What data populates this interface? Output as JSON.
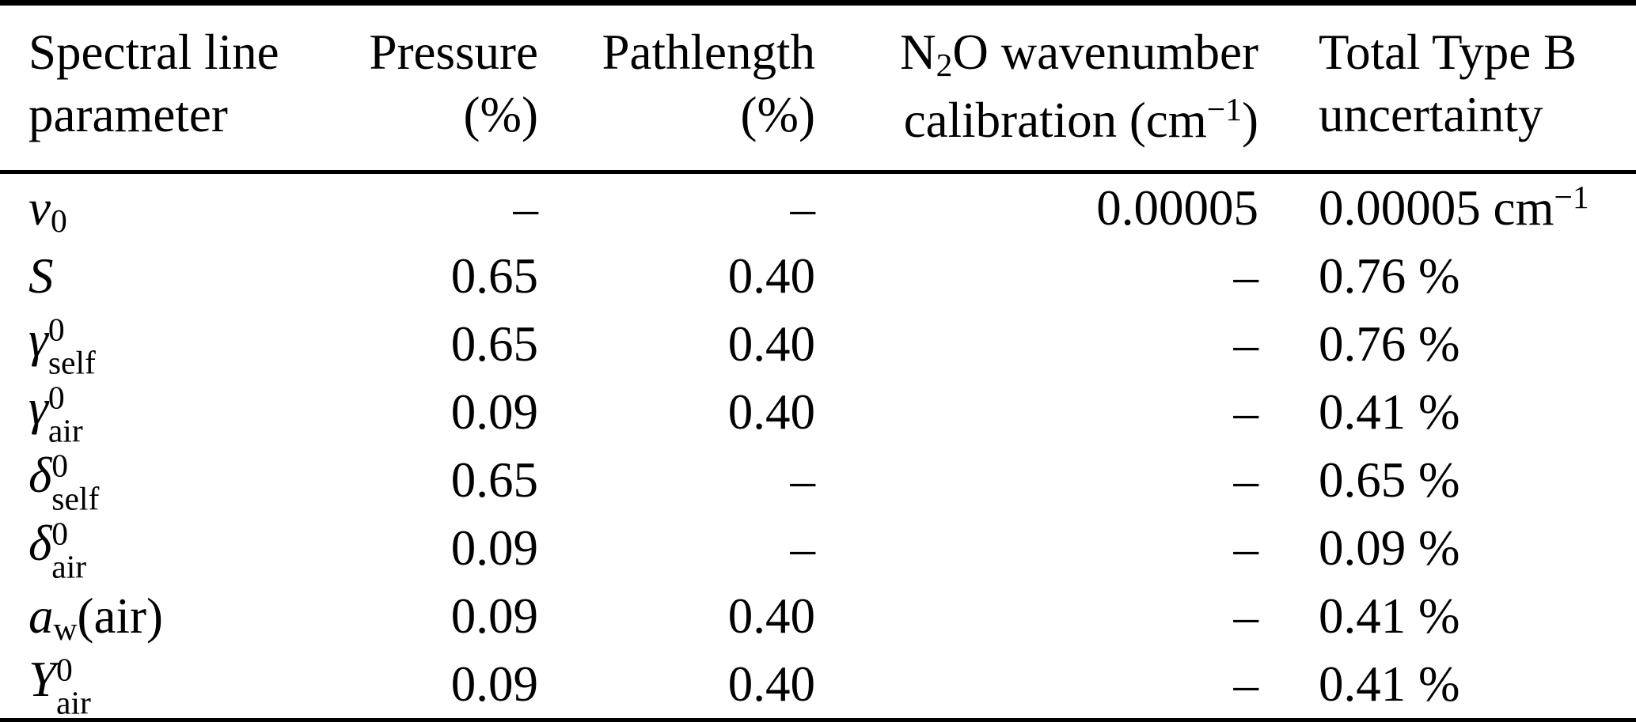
{
  "colors": {
    "text": "#000000",
    "background": "#ffffff",
    "rule": "#000000"
  },
  "table": {
    "header": [
      {
        "align": "left",
        "line1": [
          {
            "t": "Spectral line"
          }
        ],
        "line2": [
          {
            "t": "parameter"
          }
        ]
      },
      {
        "align": "right",
        "line1": [
          {
            "t": "Pressure"
          }
        ],
        "line2": [
          {
            "t": "(%)"
          }
        ]
      },
      {
        "align": "right",
        "line1": [
          {
            "t": "Pathlength"
          }
        ],
        "line2": [
          {
            "t": "(%)"
          }
        ]
      },
      {
        "align": "right",
        "line1": [
          {
            "t": "N"
          },
          {
            "t": "2",
            "pos": "sub"
          },
          {
            "t": "O wavenumber"
          }
        ],
        "line2": [
          {
            "t": "calibration (cm"
          },
          {
            "t": "−1",
            "pos": "sup"
          },
          {
            "t": ")"
          }
        ]
      },
      {
        "align": "left",
        "line1": [
          {
            "t": "Total Type B"
          }
        ],
        "line2": [
          {
            "t": "uncertainty"
          }
        ]
      }
    ],
    "rows": [
      {
        "param": {
          "base": "ν",
          "sup": "",
          "sub": "0",
          "suffix": ""
        },
        "pressure": "–",
        "pathlength": "–",
        "calibration": "0.00005",
        "total": [
          {
            "t": "0.00005 cm"
          },
          {
            "t": "−1",
            "pos": "sup"
          }
        ]
      },
      {
        "param": {
          "base": "S",
          "sup": "",
          "sub": "",
          "suffix": ""
        },
        "pressure": "0.65",
        "pathlength": "0.40",
        "calibration": "–",
        "total": [
          {
            "t": "0.76 %"
          }
        ]
      },
      {
        "param": {
          "base": "γ",
          "sup": "0",
          "sub": "self",
          "suffix": ""
        },
        "pressure": "0.65",
        "pathlength": "0.40",
        "calibration": "–",
        "total": [
          {
            "t": "0.76 %"
          }
        ]
      },
      {
        "param": {
          "base": "γ",
          "sup": "0",
          "sub": "air",
          "suffix": ""
        },
        "pressure": "0.09",
        "pathlength": "0.40",
        "calibration": "–",
        "total": [
          {
            "t": "0.41 %"
          }
        ]
      },
      {
        "param": {
          "base": "δ",
          "sup": "0",
          "sub": "self",
          "suffix": ""
        },
        "pressure": "0.65",
        "pathlength": "–",
        "calibration": "–",
        "total": [
          {
            "t": "0.65 %"
          }
        ]
      },
      {
        "param": {
          "base": "δ",
          "sup": "0",
          "sub": "air",
          "suffix": ""
        },
        "pressure": "0.09",
        "pathlength": "–",
        "calibration": "–",
        "total": [
          {
            "t": "0.09 %"
          }
        ]
      },
      {
        "param": {
          "base": "a",
          "sup": "",
          "sub": "w",
          "suffix": "(air)"
        },
        "pressure": "0.09",
        "pathlength": "0.40",
        "calibration": "–",
        "total": [
          {
            "t": "0.41 %"
          }
        ]
      },
      {
        "param": {
          "base": "Y",
          "sup": "0",
          "sub": "air",
          "suffix": ""
        },
        "pressure": "0.09",
        "pathlength": "0.40",
        "calibration": "–",
        "total": [
          {
            "t": "0.41 %"
          }
        ]
      }
    ]
  }
}
